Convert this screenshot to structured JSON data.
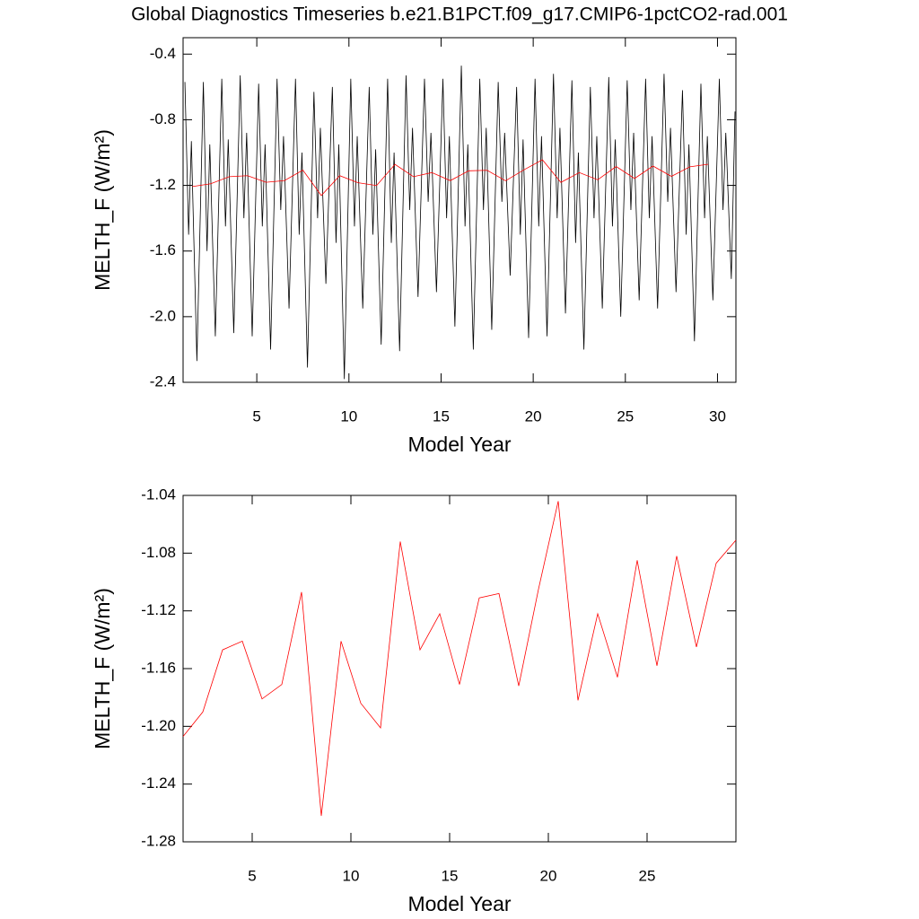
{
  "chart_data": [
    {
      "type": "line",
      "title": "Global Diagnostics Timeseries b.e21.B1PCT.f09_g17.CMIP6-1pctCO2-rad.001",
      "xlabel": "Model Year",
      "ylabel": "MELTH_F (W/m²)",
      "xlim": [
        1,
        31
      ],
      "xticks": [
        5,
        10,
        15,
        20,
        25,
        30
      ],
      "ylim": [
        -2.4,
        -0.3
      ],
      "yticks": [
        -2.4,
        {
          "value": -2,
          "label": "-2.0"
        },
        -1.6,
        -1.2,
        -0.8,
        -0.4
      ],
      "series": [
        {
          "color": "#000000",
          "x": [
            1.1,
            1.3,
            1.45,
            1.75,
            2.1,
            2.3,
            2.45,
            2.75,
            3.1,
            3.3,
            3.45,
            3.75,
            4.1,
            4.3,
            4.45,
            4.75,
            5.1,
            5.3,
            5.45,
            5.75,
            6.1,
            6.3,
            6.45,
            6.75,
            7.1,
            7.3,
            7.45,
            7.75,
            8.1,
            8.3,
            8.45,
            8.75,
            9.1,
            9.3,
            9.45,
            9.75,
            10.1,
            10.3,
            10.45,
            10.75,
            11.1,
            11.3,
            11.45,
            11.75,
            12.1,
            12.3,
            12.45,
            12.75,
            13.1,
            13.3,
            13.45,
            13.75,
            14.1,
            14.3,
            14.45,
            14.75,
            15.1,
            15.3,
            15.45,
            15.75,
            16.1,
            16.3,
            16.45,
            16.75,
            17.1,
            17.3,
            17.45,
            17.75,
            18.1,
            18.3,
            18.45,
            18.75,
            19.1,
            19.3,
            19.45,
            19.75,
            20.1,
            20.3,
            20.45,
            20.75,
            21.1,
            21.3,
            21.45,
            21.75,
            22.1,
            22.3,
            22.45,
            22.75,
            23.1,
            23.3,
            23.45,
            23.75,
            24.1,
            24.3,
            24.45,
            24.75,
            25.1,
            25.3,
            25.45,
            25.75,
            26.1,
            26.3,
            26.45,
            26.75,
            27.1,
            27.3,
            27.45,
            27.75,
            28.1,
            28.3,
            28.45,
            28.75,
            29.1,
            29.3,
            29.45,
            29.75,
            30.1,
            30.3,
            30.45,
            30.75,
            30.95
          ],
          "values": [
            -0.57,
            -1.5,
            -0.93,
            -2.27,
            -0.57,
            -1.6,
            -0.95,
            -2.12,
            -0.55,
            -1.45,
            -0.92,
            -2.1,
            -0.53,
            -1.4,
            -0.88,
            -2.12,
            -0.58,
            -1.45,
            -0.95,
            -2.2,
            -0.55,
            -1.35,
            -0.9,
            -1.95,
            -0.55,
            -1.5,
            -1.0,
            -2.31,
            -0.63,
            -1.4,
            -0.85,
            -1.8,
            -0.6,
            -1.55,
            -0.95,
            -2.38,
            -0.55,
            -1.45,
            -0.9,
            -1.95,
            -0.6,
            -1.5,
            -0.98,
            -2.17,
            -0.55,
            -1.55,
            -1.0,
            -2.21,
            -0.53,
            -1.35,
            -0.85,
            -1.88,
            -0.55,
            -1.3,
            -0.88,
            -1.85,
            -0.55,
            -1.4,
            -0.9,
            -2.06,
            -0.47,
            -1.45,
            -0.95,
            -2.2,
            -0.55,
            -1.35,
            -0.85,
            -2.08,
            -0.57,
            -1.3,
            -0.88,
            -1.75,
            -0.6,
            -1.5,
            -0.92,
            -2.13,
            -0.55,
            -1.45,
            -0.9,
            -2.12,
            -0.52,
            -1.4,
            -0.85,
            -1.98,
            -0.56,
            -1.55,
            -1.0,
            -2.2,
            -0.6,
            -1.4,
            -0.9,
            -1.95,
            -0.54,
            -1.45,
            -0.92,
            -2.0,
            -0.56,
            -1.35,
            -0.88,
            -1.9,
            -0.55,
            -1.4,
            -0.9,
            -1.95,
            -0.52,
            -1.3,
            -0.85,
            -1.85,
            -0.62,
            -1.5,
            -0.95,
            -2.15,
            -0.58,
            -1.4,
            -0.9,
            -1.9,
            -0.55,
            -1.35,
            -0.88,
            -1.77,
            -0.75
          ]
        },
        {
          "color": "#ff0000",
          "x": [
            1.5,
            2.5,
            3.5,
            4.5,
            5.5,
            6.5,
            7.5,
            8.5,
            9.5,
            10.5,
            11.5,
            12.5,
            13.5,
            14.5,
            15.5,
            16.5,
            17.5,
            18.5,
            19.5,
            20.5,
            21.5,
            22.5,
            23.5,
            24.5,
            25.5,
            26.5,
            27.5,
            28.5,
            29.5
          ],
          "values": [
            -1.207,
            -1.19,
            -1.147,
            -1.141,
            -1.181,
            -1.171,
            -1.107,
            -1.262,
            -1.141,
            -1.184,
            -1.201,
            -1.072,
            -1.147,
            -1.122,
            -1.171,
            -1.111,
            -1.108,
            -1.172,
            -1.105,
            -1.044,
            -1.182,
            -1.122,
            -1.166,
            -1.085,
            -1.158,
            -1.082,
            -1.145,
            -1.087,
            -1.071
          ]
        }
      ]
    },
    {
      "type": "line",
      "xlabel": "Model Year",
      "ylabel": "MELTH_F (W/m²)",
      "xlim": [
        1.5,
        29.5
      ],
      "xticks": [
        5,
        10,
        15,
        20,
        25
      ],
      "ylim": [
        -1.28,
        -1.04
      ],
      "yticks": [
        -1.28,
        -1.24,
        {
          "value": -1.2,
          "label": "-1.20"
        },
        -1.16,
        -1.12,
        -1.08,
        -1.04
      ],
      "series": [
        {
          "color": "#ff0000",
          "x": [
            1.5,
            2.5,
            3.5,
            4.5,
            5.5,
            6.5,
            7.5,
            8.5,
            9.5,
            10.5,
            11.5,
            12.5,
            13.5,
            14.5,
            15.5,
            16.5,
            17.5,
            18.5,
            19.5,
            20.5,
            21.5,
            22.5,
            23.5,
            24.5,
            25.5,
            26.5,
            27.5,
            28.5,
            29.5
          ],
          "values": [
            -1.207,
            -1.19,
            -1.147,
            -1.141,
            -1.181,
            -1.171,
            -1.107,
            -1.262,
            -1.141,
            -1.184,
            -1.201,
            -1.072,
            -1.147,
            -1.122,
            -1.171,
            -1.111,
            -1.108,
            -1.172,
            -1.105,
            -1.044,
            -1.182,
            -1.122,
            -1.166,
            -1.085,
            -1.158,
            -1.082,
            -1.145,
            -1.087,
            -1.071
          ]
        }
      ]
    }
  ]
}
